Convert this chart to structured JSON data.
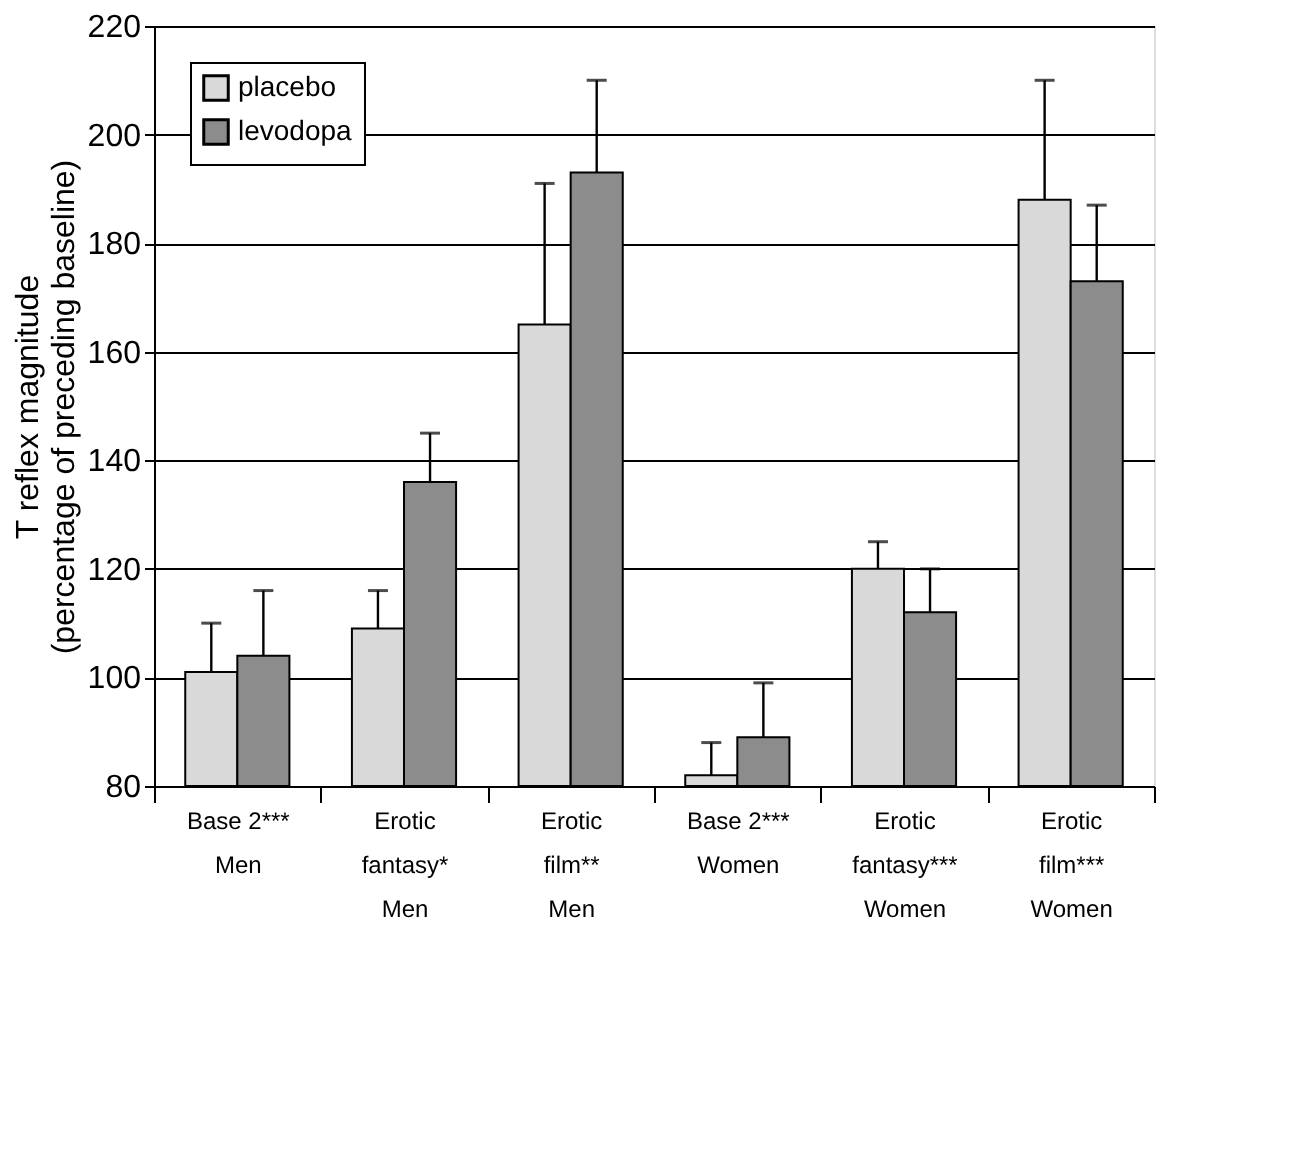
{
  "chart_data": {
    "type": "bar",
    "ylabel": "T reflex magnitude\n(percentage of preceding baseline)",
    "categories": [
      "Base 2***\n\nMen",
      "Erotic\nfantasy*\nMen",
      "Erotic\nfilm**\nMen",
      "Base 2***\n\nWomen",
      "Erotic\nfantasy***\nWomen",
      "Erotic\nfilm***\nWomen"
    ],
    "series": [
      {
        "name": "placebo",
        "color": "#d9d9d9",
        "values": [
          101,
          109,
          165,
          82,
          120,
          188
        ],
        "errors": [
          [
            101,
            110
          ],
          [
            109,
            116
          ],
          [
            165,
            191
          ],
          [
            82,
            88
          ],
          [
            120,
            125
          ],
          [
            188,
            210
          ]
        ]
      },
      {
        "name": "levodopa",
        "color": "#8c8c8c",
        "values": [
          104,
          136,
          193,
          89,
          112,
          173
        ],
        "errors": [
          [
            104,
            116
          ],
          [
            136,
            145
          ],
          [
            193,
            210
          ],
          [
            89,
            99
          ],
          [
            112,
            120
          ],
          [
            173,
            187
          ]
        ]
      }
    ],
    "ylim": [
      80,
      220
    ],
    "yticks": [
      80,
      100,
      120,
      140,
      160,
      180,
      200,
      220
    ],
    "grid": "y",
    "legend": "top left"
  }
}
